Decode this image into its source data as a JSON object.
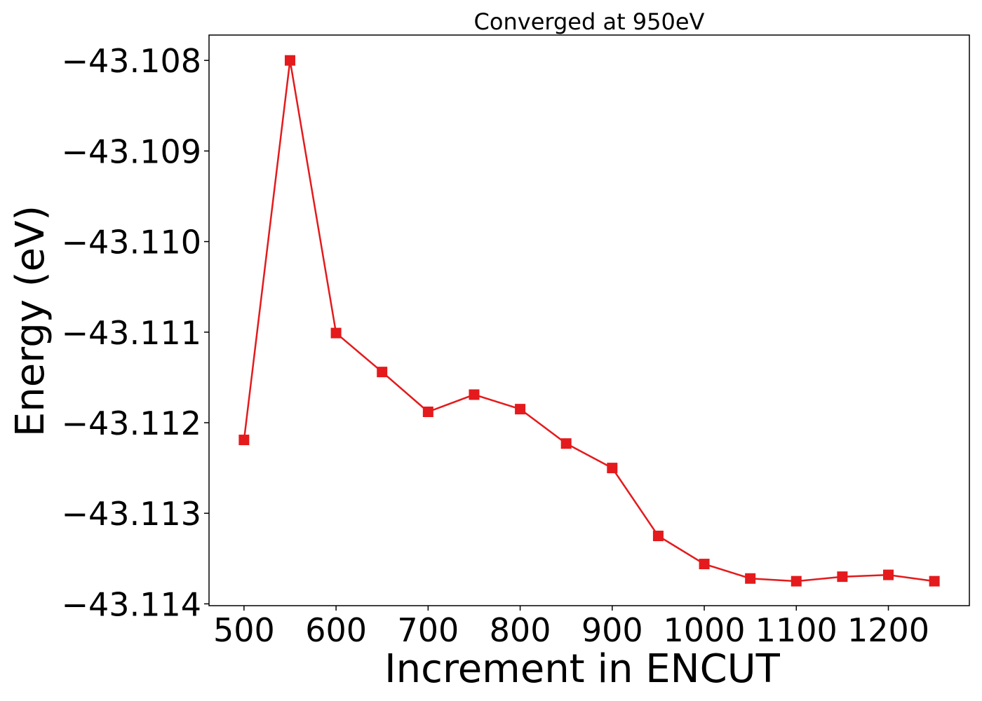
{
  "chart_data": {
    "type": "line",
    "title": "Converged at 950eV",
    "xlabel": "Increment in ENCUT",
    "ylabel": "Energy (eV)",
    "xlim": [
      462,
      1288
    ],
    "ylim": [
      -43.11402,
      -43.10772
    ],
    "x_ticks": [
      500,
      600,
      700,
      800,
      900,
      1000,
      1100,
      1200
    ],
    "x_tick_labels": [
      "500",
      "600",
      "700",
      "800",
      "900",
      "1000",
      "1100",
      "1200"
    ],
    "y_ticks": [
      -43.108,
      -43.109,
      -43.11,
      -43.111,
      -43.112,
      -43.113,
      -43.114
    ],
    "y_tick_labels": [
      "−43.108",
      "−43.109",
      "−43.110",
      "−43.111",
      "−43.112",
      "−43.113",
      "−43.114"
    ],
    "grid": false,
    "legend": "none",
    "series": [
      {
        "color": "#e41a1c",
        "marker": "square",
        "x": [
          500,
          550,
          600,
          650,
          700,
          750,
          800,
          850,
          900,
          950,
          1000,
          1050,
          1100,
          1150,
          1200,
          1250
        ],
        "y": [
          -43.11219,
          -43.108,
          -43.11101,
          -43.11144,
          -43.11188,
          -43.11169,
          -43.11185,
          -43.11223,
          -43.1125,
          -43.11325,
          -43.11356,
          -43.11372,
          -43.11375,
          -43.1137,
          -43.11368,
          -43.11375
        ]
      }
    ]
  }
}
